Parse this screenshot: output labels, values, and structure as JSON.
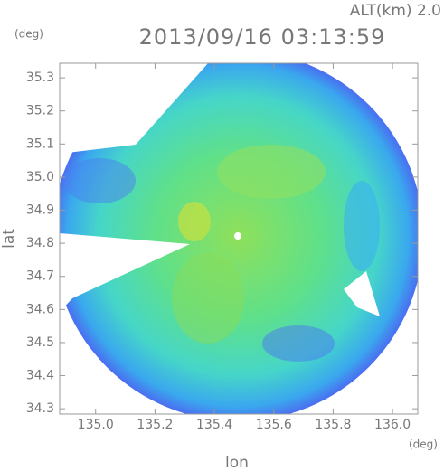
{
  "chart_data": {
    "type": "radar-map",
    "title": "2013/09/16 03:13:59",
    "subtitle": "ALT(km) 2.0",
    "xlabel": "lon",
    "ylabel": "lat",
    "xunit": "(deg)",
    "yunit": "(deg)",
    "xlim": [
      134.879,
      136.085
    ],
    "ylim": [
      34.284,
      35.344
    ],
    "xticks": [
      {
        "value": 135.0,
        "label": "135.0"
      },
      {
        "value": 135.2,
        "label": "135.2"
      },
      {
        "value": 135.4,
        "label": "135.4"
      },
      {
        "value": 135.6,
        "label": "135.6"
      },
      {
        "value": 135.8,
        "label": "135.8"
      },
      {
        "value": 136.0,
        "label": "136.0"
      }
    ],
    "yticks": [
      {
        "value": 34.3,
        "label": "34.3"
      },
      {
        "value": 34.4,
        "label": "34.4"
      },
      {
        "value": 34.5,
        "label": "34.5"
      },
      {
        "value": 34.6,
        "label": "34.6"
      },
      {
        "value": 34.7,
        "label": "34.7"
      },
      {
        "value": 34.8,
        "label": "34.8"
      },
      {
        "value": 34.9,
        "label": "34.9"
      },
      {
        "value": 35.0,
        "label": "35.0"
      },
      {
        "value": 35.1,
        "label": "35.1"
      },
      {
        "value": 35.2,
        "label": "35.2"
      },
      {
        "value": 35.3,
        "label": "35.3"
      }
    ]
  }
}
